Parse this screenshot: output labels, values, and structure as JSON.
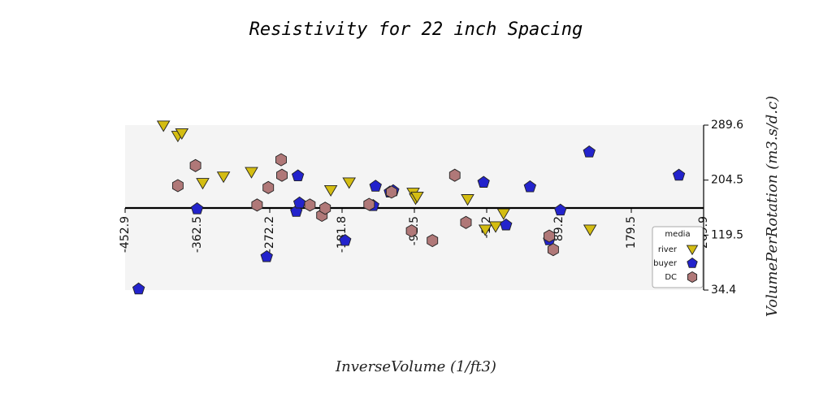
{
  "chart_data": {
    "type": "scatter",
    "title": "Resistivity for 22 inch Spacing",
    "xlabel": "InverseVolume (1/ft3)",
    "ylabel": "VolumePerRotation (m3.s/d.c)",
    "xlim": [
      -452.9,
      269.9
    ],
    "ylim": [
      34.4,
      289.6
    ],
    "x_ticks": [
      "-452.9",
      "-362.5",
      "-272.2",
      "-181.8",
      "-91.5",
      "-1.2",
      "89.2",
      "179.5",
      "269.9"
    ],
    "y_ticks": [
      "34.4",
      "119.5",
      "204.5",
      "289.6"
    ],
    "grid": false,
    "legend_title": "media",
    "legend_position": "right",
    "series": [
      {
        "name": "river",
        "marker": "triangle-down",
        "color": "#d4bd12",
        "points": [
          [
            -405,
            289
          ],
          [
            -387,
            273
          ],
          [
            -382,
            277
          ],
          [
            -356,
            200
          ],
          [
            -330,
            210
          ],
          [
            -295,
            217
          ],
          [
            -196,
            189
          ],
          [
            -173,
            201
          ],
          [
            -93,
            185
          ],
          [
            -90,
            176
          ],
          [
            -88,
            179
          ],
          [
            -25,
            175
          ],
          [
            -3,
            128
          ],
          [
            10,
            133
          ],
          [
            20,
            153
          ],
          [
            128,
            128
          ]
        ]
      },
      {
        "name": "buyer",
        "marker": "pentagon",
        "color": "#2323cc",
        "points": [
          [
            -436,
            36
          ],
          [
            -363,
            160
          ],
          [
            -276,
            86
          ],
          [
            -239,
            156
          ],
          [
            -237,
            211
          ],
          [
            -235,
            169
          ],
          [
            -178,
            111
          ],
          [
            -143,
            165
          ],
          [
            -140,
            195
          ],
          [
            -122,
            186
          ],
          [
            -118,
            188
          ],
          [
            -5,
            201
          ],
          [
            23,
            135
          ],
          [
            53,
            194
          ],
          [
            77,
            112
          ],
          [
            91,
            158
          ],
          [
            127,
            248
          ],
          [
            239,
            212
          ]
        ]
      },
      {
        "name": "DC",
        "marker": "hexagon",
        "color": "#b07878",
        "points": [
          [
            -387,
            196
          ],
          [
            -365,
            227
          ],
          [
            -288,
            166
          ],
          [
            -274,
            193
          ],
          [
            -258,
            236
          ],
          [
            -257,
            212
          ],
          [
            -222,
            166
          ],
          [
            -207,
            150
          ],
          [
            -203,
            161
          ],
          [
            -148,
            167
          ],
          [
            -120,
            186
          ],
          [
            -95,
            126
          ],
          [
            -69,
            111
          ],
          [
            -41,
            212
          ],
          [
            -27,
            139
          ],
          [
            77,
            118
          ],
          [
            82,
            97
          ]
        ]
      }
    ]
  }
}
